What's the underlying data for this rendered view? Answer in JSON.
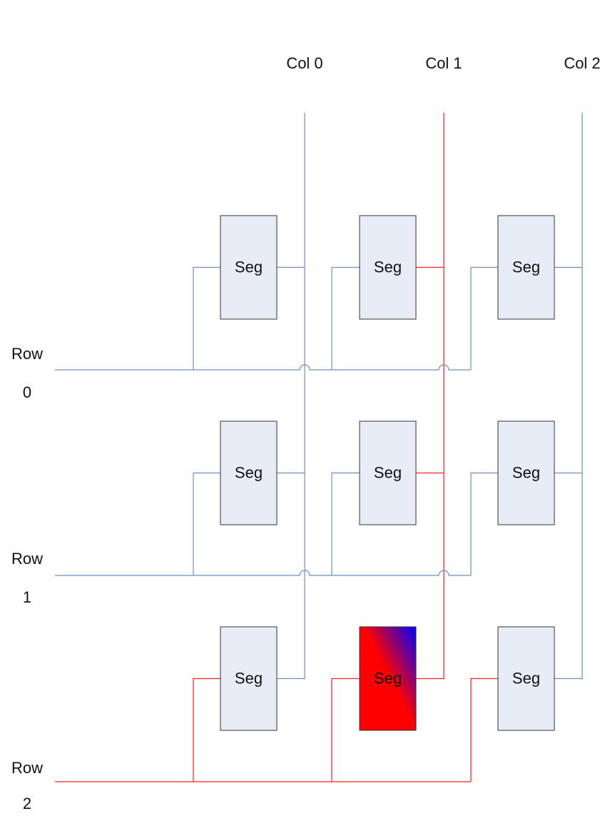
{
  "columns": [
    {
      "label": "Col 0",
      "active": false
    },
    {
      "label": "Col 1",
      "active": true
    },
    {
      "label": "Col 2",
      "active": false
    }
  ],
  "rows": [
    {
      "label_line1": "Row",
      "label_line2": "0",
      "active": false
    },
    {
      "label_line1": "Row",
      "label_line2": "1",
      "active": false
    },
    {
      "label_line1": "Row",
      "label_line2": "2",
      "active": true
    }
  ],
  "segment_label": "Seg",
  "selected_segment": {
    "row": 2,
    "col": 1
  },
  "colors": {
    "inactive_wire": "#6f8fc0",
    "active_wire": "#ff2020",
    "segment_fill": "#e8ecf6",
    "segment_stroke": "#333333",
    "selected_gradient_start": "#ff0000",
    "selected_gradient_end": "#0000ff"
  }
}
